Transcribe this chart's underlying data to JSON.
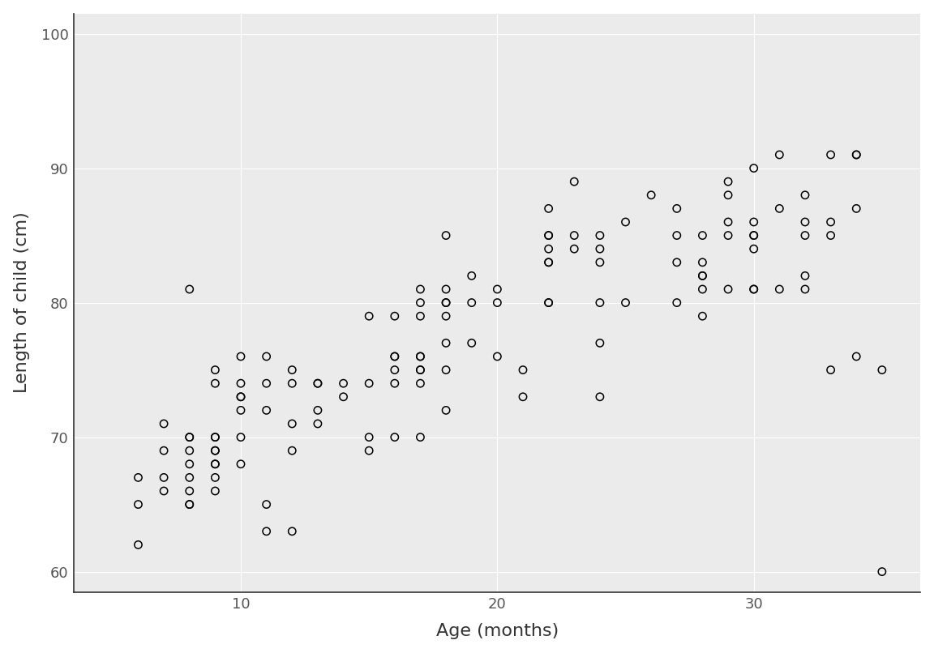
{
  "x": [
    6,
    6,
    6,
    7,
    7,
    7,
    7,
    8,
    8,
    8,
    8,
    8,
    8,
    8,
    8,
    8,
    9,
    9,
    9,
    9,
    9,
    9,
    9,
    9,
    9,
    9,
    10,
    10,
    10,
    10,
    10,
    10,
    10,
    11,
    11,
    11,
    11,
    11,
    12,
    12,
    12,
    12,
    12,
    13,
    13,
    13,
    13,
    14,
    14,
    15,
    15,
    15,
    15,
    16,
    16,
    16,
    16,
    16,
    16,
    17,
    17,
    17,
    17,
    17,
    17,
    17,
    17,
    17,
    18,
    18,
    18,
    18,
    18,
    18,
    18,
    18,
    19,
    19,
    19,
    20,
    20,
    20,
    21,
    21,
    22,
    22,
    22,
    22,
    22,
    22,
    22,
    22,
    23,
    23,
    23,
    24,
    24,
    24,
    24,
    24,
    24,
    25,
    25,
    26,
    27,
    27,
    27,
    27,
    28,
    28,
    28,
    28,
    28,
    28,
    29,
    29,
    29,
    29,
    29,
    30,
    30,
    30,
    30,
    30,
    30,
    30,
    31,
    31,
    31,
    32,
    32,
    32,
    32,
    32,
    33,
    33,
    33,
    33,
    34,
    34,
    34,
    34,
    35,
    35
  ],
  "y": [
    62,
    65,
    67,
    66,
    67,
    69,
    71,
    65,
    66,
    67,
    68,
    69,
    70,
    70,
    81,
    65,
    66,
    67,
    68,
    68,
    69,
    69,
    70,
    70,
    74,
    75,
    68,
    70,
    72,
    73,
    73,
    74,
    76,
    63,
    65,
    72,
    74,
    76,
    63,
    69,
    71,
    74,
    75,
    71,
    72,
    74,
    74,
    73,
    74,
    70,
    74,
    79,
    69,
    70,
    74,
    75,
    76,
    76,
    79,
    70,
    74,
    75,
    75,
    76,
    76,
    79,
    80,
    81,
    72,
    75,
    77,
    79,
    80,
    80,
    81,
    85,
    77,
    80,
    82,
    76,
    80,
    81,
    73,
    75,
    80,
    80,
    83,
    83,
    84,
    85,
    85,
    87,
    84,
    85,
    89,
    73,
    77,
    80,
    83,
    84,
    85,
    80,
    86,
    88,
    80,
    83,
    85,
    87,
    79,
    81,
    82,
    82,
    83,
    85,
    81,
    85,
    86,
    88,
    89,
    81,
    81,
    84,
    85,
    85,
    86,
    90,
    81,
    87,
    91,
    81,
    82,
    85,
    86,
    88,
    75,
    85,
    86,
    91,
    76,
    87,
    91,
    91,
    60,
    75
  ],
  "xlim": [
    3.5,
    36.5
  ],
  "ylim": [
    58.5,
    101.5
  ],
  "xticks": [
    10,
    20,
    30
  ],
  "yticks": [
    60,
    70,
    80,
    90,
    100
  ],
  "xlabel": "Age (months)",
  "ylabel": "Length of child (cm)",
  "marker_size": 45,
  "marker_color": "#000000",
  "marker_facecolor": "none",
  "marker_linewidth": 1.1,
  "grid_color": "#ffffff",
  "panel_bg": "#ebebeb",
  "outer_bg": "#ffffff",
  "tick_color": "#555555",
  "label_color": "#333333",
  "spine_color": "#333333"
}
